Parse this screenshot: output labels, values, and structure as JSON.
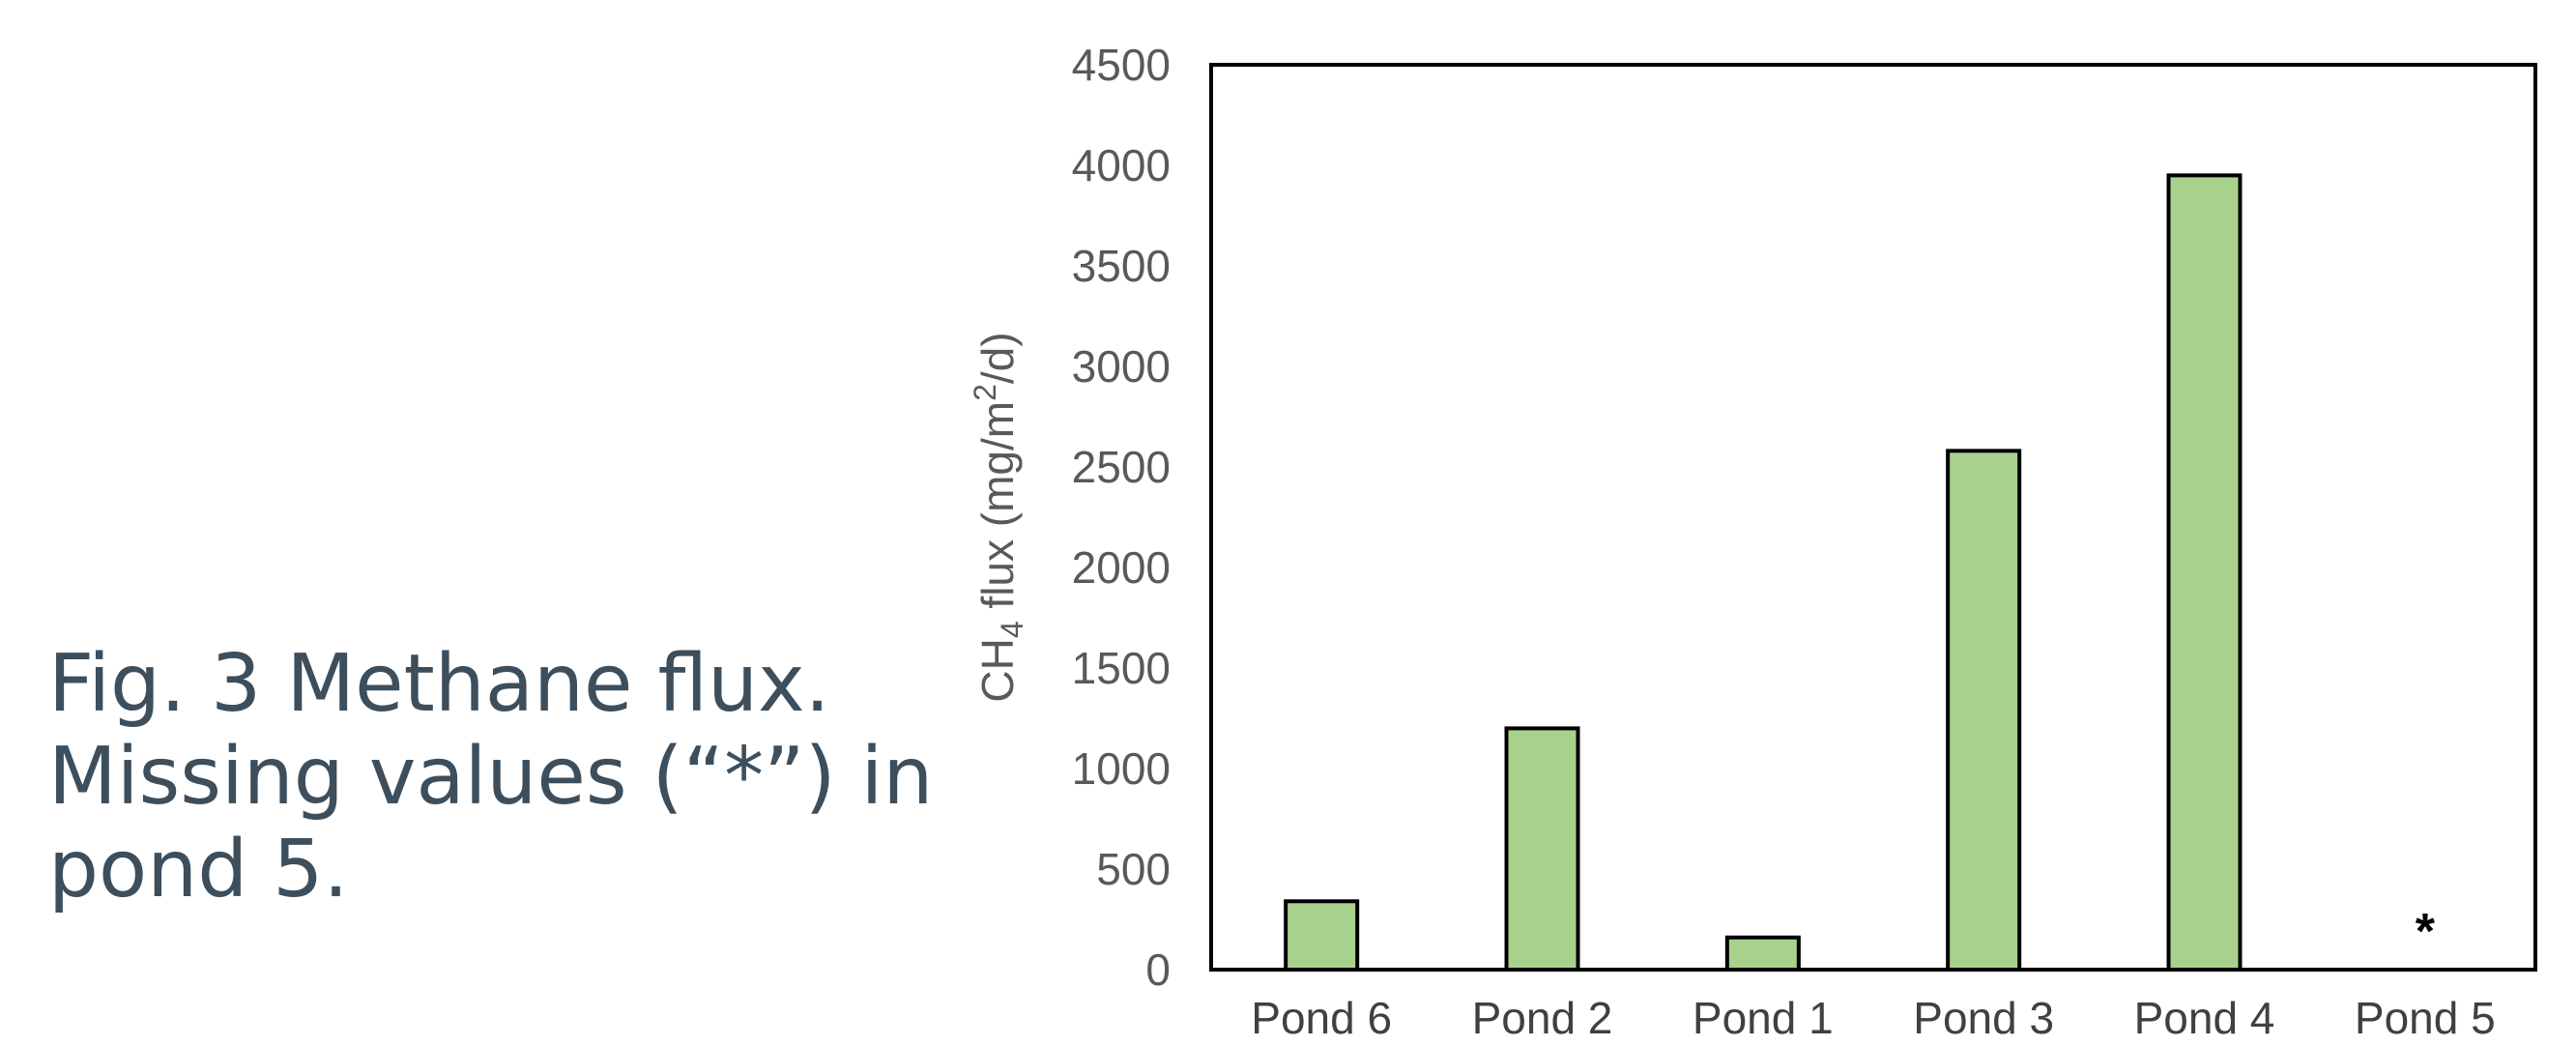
{
  "caption": {
    "line1": "Fig. 3 Methane flux.",
    "line2": "Missing values (“*”) in",
    "line3": "pond 5."
  },
  "chart_data": {
    "type": "bar",
    "categories": [
      "Pond 6",
      "Pond 2",
      "Pond 1",
      "Pond 3",
      "Pond 4",
      "Pond 5"
    ],
    "values": [
      340,
      1200,
      160,
      2580,
      3950,
      null
    ],
    "missing_marker": "*",
    "ylabel_main": "CH",
    "ylabel_sub": "4",
    "ylabel_mid": " flux (mg/m",
    "ylabel_sup": "2",
    "ylabel_end": "/d)",
    "ylim": [
      0,
      4500
    ],
    "yticks": [
      0,
      500,
      1000,
      1500,
      2000,
      2500,
      3000,
      3500,
      4000,
      4500
    ],
    "grid": false,
    "legend": "none",
    "bar_color": "#a9d18e",
    "edge_color": "#000000"
  }
}
